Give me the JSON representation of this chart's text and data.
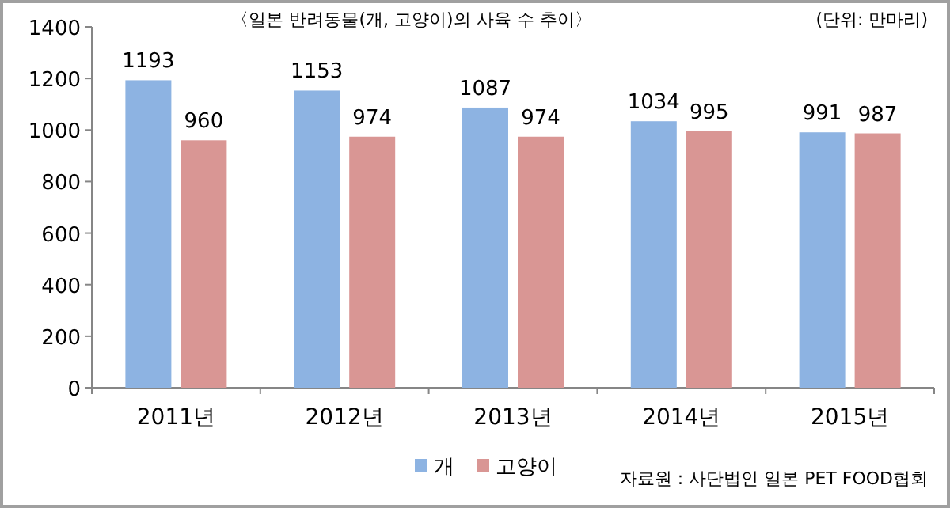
{
  "chart_data": {
    "type": "bar",
    "title": "〈일본 반려동물(개, 고양이)의 사육 수 추이〉",
    "categories": [
      "2011년",
      "2012년",
      "2013년",
      "2014년",
      "2015년"
    ],
    "series": [
      {
        "name": "개",
        "color": "#8db3e2",
        "values": [
          1193,
          1153,
          1087,
          1034,
          991
        ]
      },
      {
        "name": "고양이",
        "color": "#d99694",
        "values": [
          960,
          974,
          974,
          995,
          987
        ]
      }
    ],
    "ylim": [
      0,
      1400
    ],
    "yticks": [
      0,
      200,
      400,
      600,
      800,
      1000,
      1200,
      1400
    ],
    "data_labels": true,
    "grid": false,
    "legend": "bottom",
    "annotations": [
      "(단위: 만마리)",
      "자료원 : 사단법인 일본 PET FOOD협회"
    ]
  }
}
